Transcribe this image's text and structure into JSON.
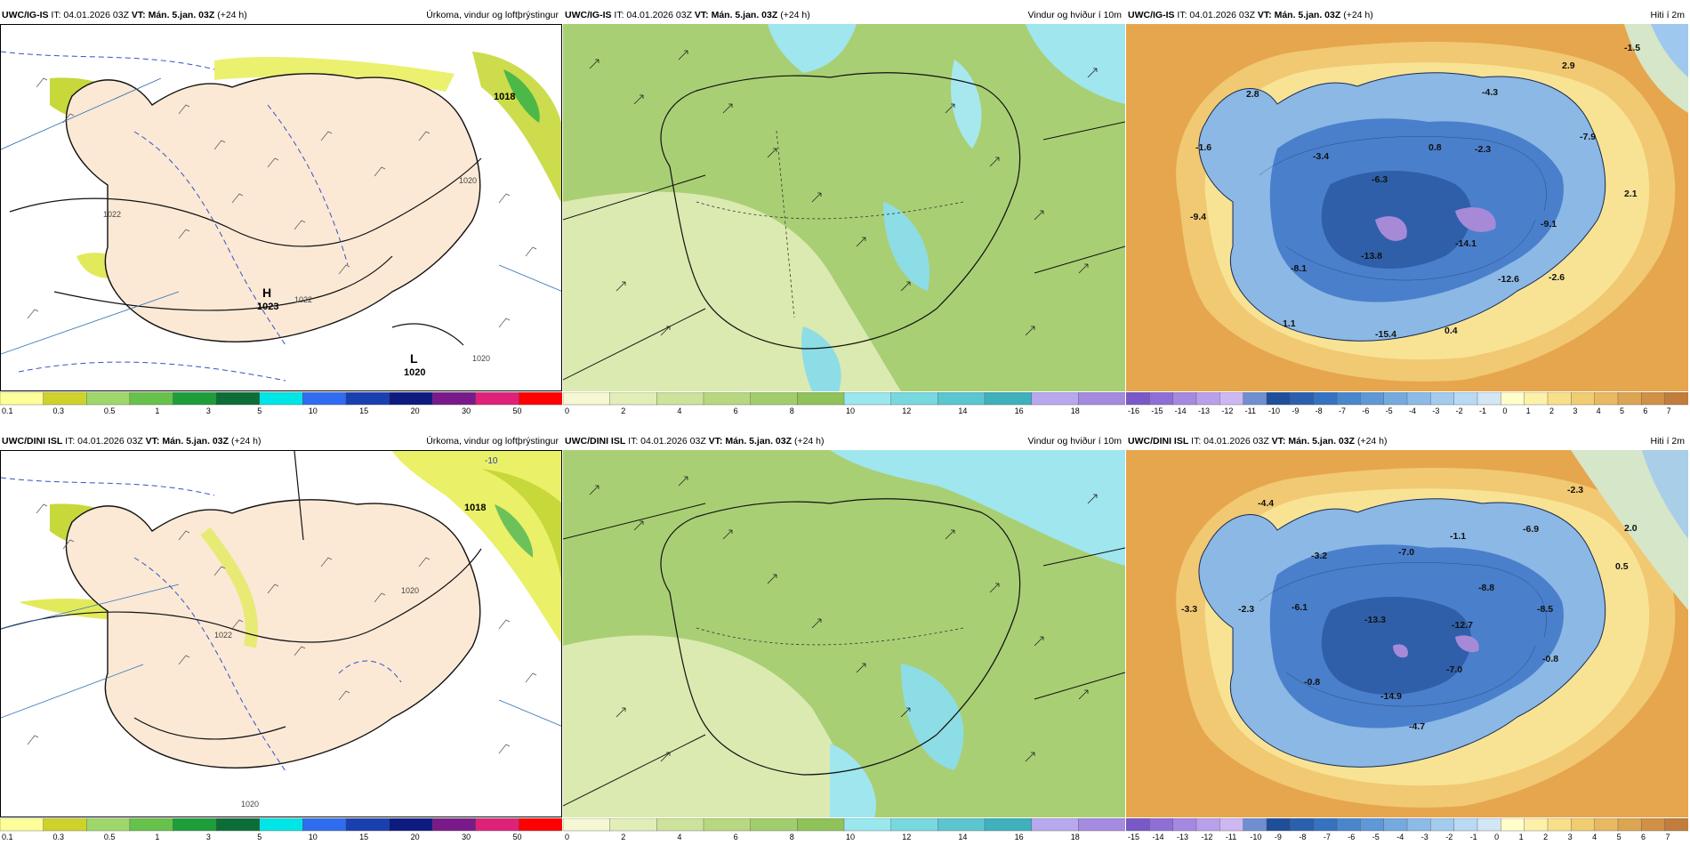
{
  "rows": [
    {
      "model": "UWC/IG-IS",
      "panels": [
        {
          "kind": "precip",
          "it_label": "IT: 04.01.2026 03Z",
          "vt_label": "VT: Mán. 5.jan. 03Z",
          "lead": "(+24 h)",
          "title": "Úrkoma, vindur og loftþrýstingur",
          "labels": {
            "H": "H",
            "L": "L",
            "p1": "1018",
            "p2": "1023",
            "p3": "1020",
            "p4": "1022",
            "p5": "1020",
            "p6": "1022",
            "p7": "1020"
          }
        },
        {
          "kind": "wind",
          "it_label": "IT: 04.01.2026 03Z",
          "vt_label": "VT: Mán. 5.jan. 03Z",
          "lead": "(+24 h)",
          "title": "Vindur og hviður í 10m"
        },
        {
          "kind": "temp",
          "it_label": "IT: 04.01.2026 03Z",
          "vt_label": "VT: Mán. 5.jan. 03Z",
          "lead": "(+24 h)",
          "title": "Hiti í 2m",
          "values": [
            "-1.5",
            "2.9",
            "2.8",
            "-4.3",
            "-1.6",
            "-3.4",
            "0.8",
            "-2.3",
            "-7.9",
            "-6.3",
            "2.1",
            "-9.4",
            "-9.1",
            "-14.1",
            "-13.8",
            "-8.1",
            "-12.6",
            "-2.6",
            "1.1",
            "-15.4",
            "0.4"
          ]
        }
      ]
    },
    {
      "model": "UWC/DINI ISL",
      "panels": [
        {
          "kind": "precip",
          "it_label": "IT: 04.01.2026 03Z",
          "vt_label": "VT: Mán. 5.jan. 03Z",
          "lead": "(+24 h)",
          "title": "Úrkoma, vindur og loftþrýstingur",
          "labels": {
            "p1": "1018",
            "p2": "1020",
            "p3": "1022",
            "p4": "1020",
            "p5": "-10"
          }
        },
        {
          "kind": "wind",
          "it_label": "IT: 04.01.2026 03Z",
          "vt_label": "VT: Mán. 5.jan. 03Z",
          "lead": "(+24 h)",
          "title": "Vindur og hviður í 10m"
        },
        {
          "kind": "temp",
          "it_label": "IT: 04.01.2026 03Z",
          "vt_label": "VT: Mán. 5.jan. 03Z",
          "lead": "(+24 h)",
          "title": "Hiti í 2m",
          "values": [
            "-2.3",
            "-4.4",
            "2.0",
            "-1.1",
            "-6.9",
            "-3.2",
            "-7.0",
            "0.5",
            "-3.3",
            "-2.3",
            "-6.1",
            "-8.8",
            "-8.5",
            "-13.3",
            "-12.7",
            "-0.8",
            "-7.0",
            "-0.8",
            "-14.9",
            "-4.7"
          ]
        }
      ]
    }
  ],
  "scales": {
    "precip": {
      "labels": [
        "0.1",
        "0.3",
        "0.5",
        "1",
        "3",
        "5",
        "10",
        "15",
        "20",
        "30",
        "50"
      ],
      "colors": [
        "#ffff99",
        "#cfd22a",
        "#9fd86a",
        "#66c24a",
        "#1d9e3a",
        "#0d6d36",
        "#00e5e5",
        "#2f6cf0",
        "#1a3fb0",
        "#0d1a80",
        "#7a1a8a",
        "#e0217a",
        "#ff0000"
      ]
    },
    "wind": {
      "labels": [
        "0",
        "2",
        "4",
        "6",
        "8",
        "10",
        "12",
        "14",
        "16",
        "18"
      ],
      "colors": [
        "#f5f8d2",
        "#e2eeb7",
        "#cde39b",
        "#b7d881",
        "#a2cd6c",
        "#8fc35a",
        "#9ae8ee",
        "#78d8e0",
        "#5cc6d0",
        "#3fb1bd",
        "#b8a8ee",
        "#a48be0"
      ]
    },
    "temp": {
      "labels": [
        "-16",
        "-15",
        "-14",
        "-13",
        "-12",
        "-11",
        "-10",
        "-9",
        "-8",
        "-7",
        "-6",
        "-5",
        "-4",
        "-3",
        "-2",
        "-1",
        "0",
        "1",
        "2",
        "3",
        "4",
        "5",
        "6",
        "7"
      ],
      "labels_row2": [
        "-15",
        "-14",
        "-13",
        "-12",
        "-11",
        "-10",
        "-9",
        "-8",
        "-7",
        "-6",
        "-5",
        "-4",
        "-3",
        "-2",
        "-1",
        "0",
        "1",
        "2",
        "3",
        "4",
        "5",
        "6",
        "7"
      ],
      "colors": [
        "#7a58c8",
        "#8f6fd6",
        "#a588e0",
        "#b9a0ea",
        "#cdb8f2",
        "#6f8fd0",
        "#1f4e9a",
        "#2a60ad",
        "#3572bf",
        "#4a86cc",
        "#5f98d6",
        "#74aade",
        "#8bbbe6",
        "#a3cbee",
        "#bad9f3",
        "#d2e6f6",
        "#ffffcc",
        "#fdf0a8",
        "#f8e08a",
        "#f1cd72",
        "#e8b960",
        "#dca552",
        "#d09146",
        "#c27d3c"
      ]
    }
  },
  "colors": {
    "land_precip": "#fbe9d6",
    "sea_precip": "#ffffff",
    "wind_dark": "#9bc46a",
    "wind_light": "#dfeeb8",
    "wind_ice": "#9fe8ee",
    "temp_sea": "#e8a64e",
    "temp_land": "#4a7fcb"
  }
}
